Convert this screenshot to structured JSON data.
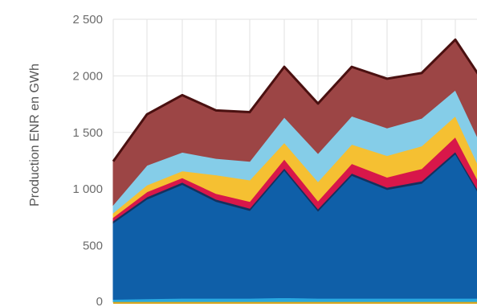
{
  "chart_data": {
    "type": "area",
    "stacked": true,
    "ylabel": "Production ENR en GWh",
    "ylim": [
      0,
      2500
    ],
    "y_ticks": [
      0,
      500,
      1000,
      1500,
      2000,
      2500
    ],
    "y_tick_labels": [
      "0",
      "500",
      "1 000",
      "1 500",
      "2 000",
      "2 500"
    ],
    "grid": true,
    "x": [
      1,
      2,
      3,
      4,
      5,
      6,
      7,
      8,
      9,
      10,
      11,
      12
    ],
    "series": [
      {
        "color": "#e6b800",
        "values": [
          5,
          5,
          5,
          5,
          5,
          5,
          5,
          5,
          5,
          5,
          5,
          5
        ]
      },
      {
        "color": "#29a8e0",
        "values": [
          20,
          25,
          30,
          30,
          30,
          35,
          30,
          30,
          30,
          30,
          30,
          30
        ]
      },
      {
        "color": "#0f5fa8",
        "values": [
          675,
          880,
          1005,
          855,
          775,
          1125,
          770,
          1085,
          960,
          1015,
          1275,
          770
        ]
      },
      {
        "color": "#15315e",
        "values": [
          20,
          20,
          20,
          20,
          20,
          20,
          20,
          20,
          20,
          20,
          20,
          20
        ]
      },
      {
        "color": "#d8174a",
        "values": [
          30,
          45,
          40,
          50,
          60,
          80,
          70,
          85,
          90,
          110,
          130,
          60
        ]
      },
      {
        "color": "#f5c032",
        "values": [
          40,
          60,
          60,
          165,
          190,
          145,
          170,
          170,
          190,
          200,
          185,
          120
        ]
      },
      {
        "color": "#85cde8",
        "values": [
          70,
          175,
          165,
          145,
          165,
          225,
          250,
          250,
          245,
          245,
          230,
          235
        ]
      },
      {
        "color": "#9c4545",
        "values": [
          385,
          450,
          505,
          425,
          435,
          445,
          440,
          435,
          435,
          400,
          445,
          630
        ]
      }
    ],
    "outline_color": "#4a1010"
  }
}
